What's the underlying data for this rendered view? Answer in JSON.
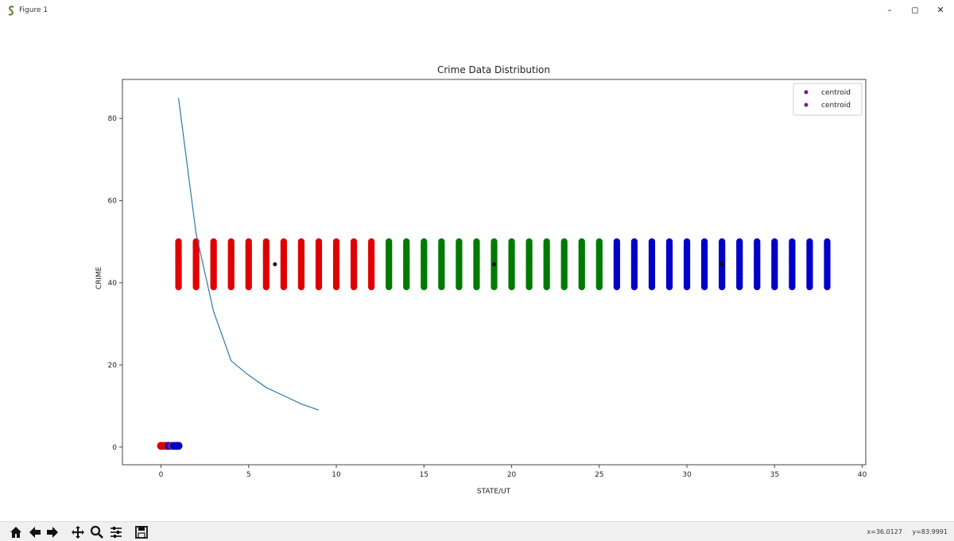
{
  "window": {
    "title": "Figure 1",
    "minimize_label": "–",
    "maximize_label": "◻",
    "close_label": "✕"
  },
  "toolbar": {
    "tools": [
      "home-icon",
      "back-icon",
      "forward-icon",
      "pan-icon",
      "zoom-icon",
      "configure-subplots-icon",
      "save-icon"
    ],
    "x_readout": "x=36.0127",
    "y_readout": "y=83.9991"
  },
  "colors": {
    "cluster1": "#e00000",
    "cluster2": "#007a00",
    "cluster3": "#0000c8",
    "line": "#2a7aa8",
    "centroid_legend": "#7a1f7a"
  },
  "chart_data": {
    "type": "scatter",
    "title": "Crime Data Distribution",
    "xlabel": "STATE/UT",
    "ylabel": "CRIME",
    "xlim": [
      -2.2,
      40.2
    ],
    "ylim": [
      -4.3,
      89.5
    ],
    "xticks": [
      0,
      5,
      10,
      15,
      20,
      25,
      30,
      35,
      40
    ],
    "yticks": [
      0,
      20,
      40,
      60,
      80
    ],
    "grid": false,
    "legend": {
      "position": "top-right",
      "entries": [
        "centroid",
        "centroid"
      ]
    },
    "column_y_range": [
      39,
      50
    ],
    "series": [
      {
        "color": "#e00000",
        "x": [
          1,
          2,
          3,
          4,
          5,
          6,
          7,
          8,
          9,
          10,
          11,
          12
        ]
      },
      {
        "color": "#007a00",
        "x": [
          13,
          14,
          15,
          16,
          17,
          18,
          19,
          20,
          21,
          22,
          23,
          24,
          25
        ]
      },
      {
        "color": "#0000c8",
        "x": [
          26,
          27,
          28,
          29,
          30,
          31,
          32,
          33,
          34,
          35,
          36,
          37,
          38
        ]
      }
    ],
    "centroids": [
      {
        "x": 6.5,
        "y": 44.5
      },
      {
        "x": 19,
        "y": 44.5
      },
      {
        "x": 32,
        "y": 44.5
      }
    ],
    "line_series": {
      "x": [
        1,
        2,
        3,
        4,
        5,
        6,
        7,
        8,
        9
      ],
      "y": [
        85,
        52,
        33,
        21,
        17.5,
        14.5,
        12.5,
        10.5,
        9
      ]
    },
    "origin_points": [
      {
        "x": 0.0,
        "y": 0.3,
        "color": "#e00000"
      },
      {
        "x": 0.15,
        "y": 0.3,
        "color": "#e00000"
      },
      {
        "x": 0.3,
        "y": 0.3,
        "color": "#e00000"
      },
      {
        "x": 0.45,
        "y": 0.3,
        "color": "#0000c8"
      },
      {
        "x": 0.6,
        "y": 0.3,
        "color": "#7a1f7a"
      },
      {
        "x": 0.75,
        "y": 0.3,
        "color": "#0000c8"
      },
      {
        "x": 0.9,
        "y": 0.3,
        "color": "#0000c8"
      },
      {
        "x": 1.0,
        "y": 0.3,
        "color": "#0000c8"
      }
    ]
  }
}
